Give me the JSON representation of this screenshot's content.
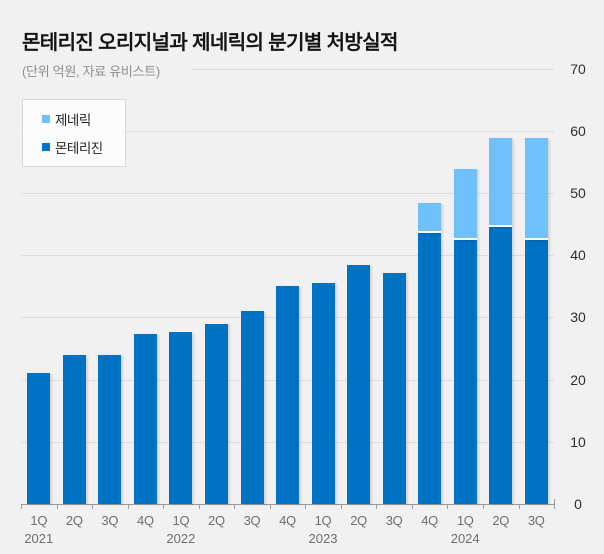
{
  "title": "몬테리진 오리지널과 제네릭의 분기별 처방실적",
  "subtitle": "(단위 억원, 자료 유비스트)",
  "colors": {
    "background": "#F1F1F1",
    "original": "#0072C3",
    "generic": "#6FC0FB",
    "gridline": "#DCDCDC",
    "axis": "#9A9A9A"
  },
  "legend": {
    "items": [
      {
        "label": "제네릭",
        "color": "#6FC0FB"
      },
      {
        "label": "몬테리진",
        "color": "#0072C3"
      }
    ]
  },
  "chart_data": {
    "type": "bar",
    "stacked": true,
    "title": "몬테리진 오리지널과 제네릭의 분기별 처방실적",
    "subtitle": "(단위 억원, 자료 유비스트)",
    "unit": "억원",
    "source": "유비스트",
    "categories": [
      "1Q",
      "2Q",
      "3Q",
      "4Q",
      "1Q",
      "2Q",
      "3Q",
      "4Q",
      "1Q",
      "2Q",
      "3Q",
      "4Q",
      "1Q",
      "2Q",
      "3Q"
    ],
    "year_labels": [
      {
        "year": "2021",
        "index": 0
      },
      {
        "year": "2022",
        "index": 4
      },
      {
        "year": "2023",
        "index": 8
      },
      {
        "year": "2024",
        "index": 12
      }
    ],
    "series": [
      {
        "name": "몬테리진",
        "color": "#0072C3",
        "values": [
          21,
          24,
          24,
          27.3,
          27.6,
          29,
          31,
          35,
          35.6,
          38.5,
          37.2,
          43.5,
          42.5,
          44.5,
          42.5
        ]
      },
      {
        "name": "제네릭",
        "color": "#6FC0FB",
        "values": [
          0,
          0,
          0,
          0,
          0,
          0,
          0,
          0,
          0,
          0,
          0,
          4.5,
          11,
          14,
          16
        ]
      }
    ],
    "ylim": [
      0,
      70
    ],
    "yticks": [
      0,
      10,
      20,
      30,
      40,
      50,
      60,
      70
    ],
    "legend_position": "top-left",
    "grid": "horizontal"
  }
}
